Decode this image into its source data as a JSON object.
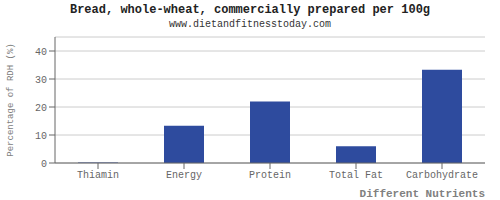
{
  "chart_data": {
    "type": "bar",
    "title": "Bread, whole-wheat, commercially prepared per 100g",
    "subtitle": "www.dietandfitnesstoday.com",
    "categories": [
      "Thiamin",
      "Energy",
      "Protein",
      "Total Fat",
      "Carbohydrate"
    ],
    "values": [
      0.2,
      13.3,
      22.0,
      6.0,
      33.3
    ],
    "color": "#2e4b9e",
    "xlabel": "Different Nutrients",
    "ylabel": "Percentage of RDH (%)",
    "ylim": [
      0,
      45
    ],
    "yticks": [
      0,
      10,
      20,
      30,
      40
    ],
    "grid": true
  }
}
